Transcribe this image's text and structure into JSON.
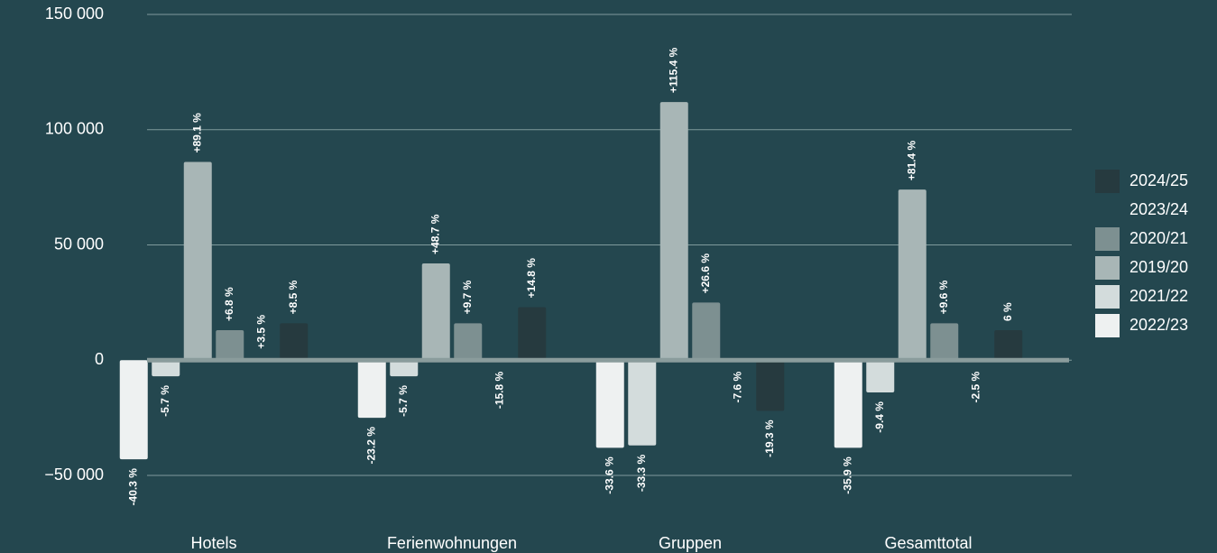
{
  "chart_data": {
    "type": "bar",
    "categories": [
      "Hotels",
      "Ferienwohnungen",
      "Gruppen",
      "Gesamttotal"
    ],
    "series": [
      {
        "name": "2022/23",
        "color": "#eef1f1",
        "values": [
          -43000,
          -25000,
          -38000,
          -38000
        ],
        "change_labels": [
          "-40.3 %",
          "-23.2 %",
          "-33.6 %",
          "-35.9 %"
        ]
      },
      {
        "name": "2021/22",
        "color": "#d3dcdc",
        "values": [
          -7000,
          -7000,
          -37000,
          -14000
        ],
        "change_labels": [
          "-5.7 %",
          "-5.7 %",
          "-33.3 %",
          "-9.4 %"
        ]
      },
      {
        "name": "2019/20",
        "color": "#a8b6b6",
        "values": [
          86000,
          42000,
          112000,
          74000
        ],
        "change_labels": [
          "+89.1 %",
          "+48.7 %",
          "+115.4 %",
          "+81.4 %"
        ]
      },
      {
        "name": "2020/21",
        "color": "#7d9091",
        "values": [
          13000,
          16000,
          25000,
          16000
        ],
        "change_labels": [
          "+6.8 %",
          "+9.7 %",
          "+26.6 %",
          "+9.6 %"
        ]
      },
      {
        "name": "2023/24",
        "color": "#24474f",
        "values": [
          1000,
          -1000,
          -1000,
          -1000
        ],
        "change_labels": [
          "+3.5 %",
          "-15.8 %",
          "-7.6 %",
          "-2.5 %"
        ]
      },
      {
        "name": "2024/25",
        "color": "#263a3f",
        "values": [
          16000,
          23000,
          -22000,
          13000
        ],
        "change_labels": [
          "+8.5 %",
          "+14.8 %",
          "-19.3 %",
          "6 %"
        ]
      }
    ],
    "ylim": [
      -60000,
      150000
    ],
    "yticks": [
      {
        "value": -50000,
        "label": "−50 000"
      },
      0,
      {
        "value": 50000,
        "label": "50 000"
      },
      {
        "value": 100000,
        "label": "100 000"
      },
      {
        "value": 150000,
        "label": "150 000"
      }
    ],
    "grid": true,
    "legend": "right"
  }
}
